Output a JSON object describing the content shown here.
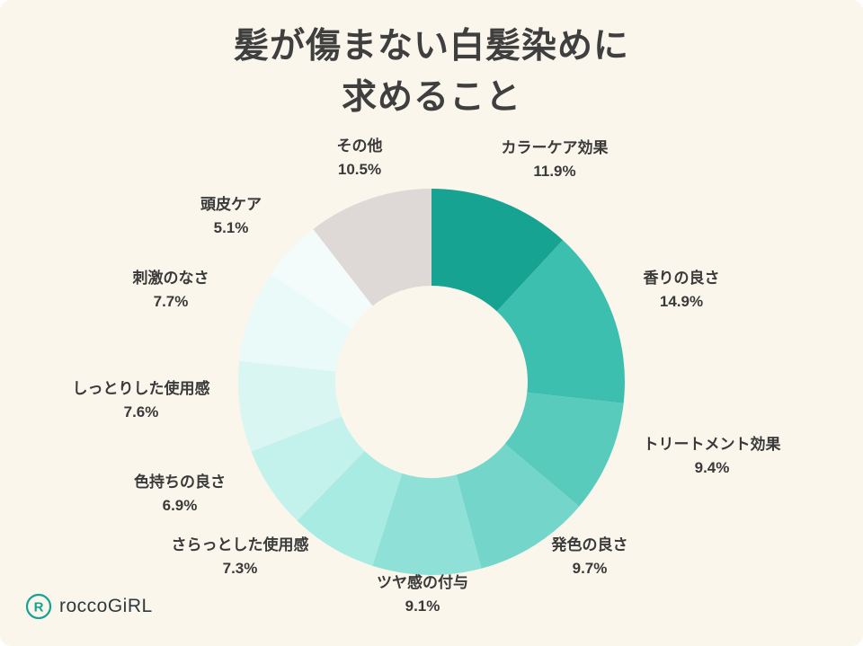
{
  "page": {
    "background_color": "#faf6ec"
  },
  "title": {
    "line1": "髪が傷まない白髪染めに",
    "line2": "求めること"
  },
  "logo": {
    "text": "roccoGiRL",
    "icon_letter": "R",
    "brand_color": "#14a392"
  },
  "chart_data": {
    "type": "pie",
    "subtype": "donut",
    "title": "髪が傷まない白髪染めに求めること",
    "direction": "clockwise",
    "start_angle_deg": 0,
    "legend_position": "outside-labels",
    "segments": [
      {
        "label": "カラーケア効果",
        "value": 11.9,
        "pct": "11.9%",
        "color": "#16a392"
      },
      {
        "label": "香りの良さ",
        "value": 14.9,
        "pct": "14.9%",
        "color": "#3cbfae"
      },
      {
        "label": "トリートメント効果",
        "value": 9.4,
        "pct": "9.4%",
        "color": "#58cbbd"
      },
      {
        "label": "発色の良さ",
        "value": 9.7,
        "pct": "9.7%",
        "color": "#74d6ca"
      },
      {
        "label": "ツヤ感の付与",
        "value": 9.1,
        "pct": "9.1%",
        "color": "#8fe1d8"
      },
      {
        "label": "さらっとした使用感",
        "value": 7.3,
        "pct": "7.3%",
        "color": "#a8ebe3"
      },
      {
        "label": "色持ちの良さ",
        "value": 6.9,
        "pct": "6.9%",
        "color": "#c3f1ec"
      },
      {
        "label": "しっとりした使用感",
        "value": 7.6,
        "pct": "7.6%",
        "color": "#d9f6f3"
      },
      {
        "label": "刺激のなさ",
        "value": 7.7,
        "pct": "7.7%",
        "color": "#eafaf8"
      },
      {
        "label": "頭皮ケア",
        "value": 5.1,
        "pct": "5.1%",
        "color": "#f4fcfb"
      },
      {
        "label": "その他",
        "value": 10.5,
        "pct": "10.5%",
        "color": "#ded9d6"
      }
    ]
  }
}
